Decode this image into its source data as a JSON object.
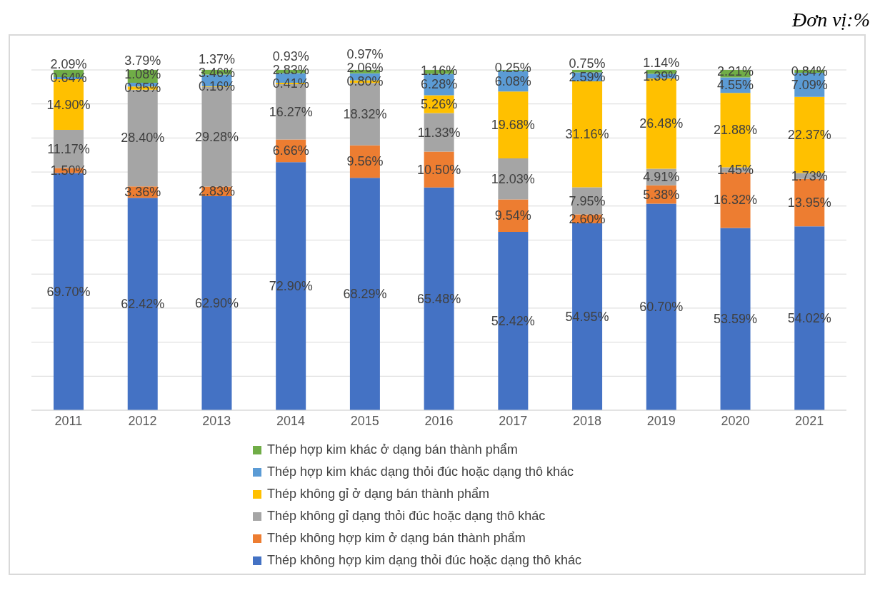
{
  "chart_data": {
    "type": "bar",
    "stacked": true,
    "annotations": [
      "Đơn vị:%"
    ],
    "categories": [
      "2011",
      "2012",
      "2013",
      "2014",
      "2015",
      "2016",
      "2017",
      "2018",
      "2019",
      "2020",
      "2021"
    ],
    "ylim": [
      0,
      100
    ],
    "yticks": [
      {
        "value": 0,
        "label": null
      },
      {
        "value": 10,
        "label": null
      },
      {
        "value": 20,
        "label": null
      },
      {
        "value": 30,
        "label": null
      },
      {
        "value": 40,
        "label": null
      },
      {
        "value": 50,
        "label": null
      },
      {
        "value": 60,
        "label": null
      },
      {
        "value": 70,
        "label": null
      },
      {
        "value": 80,
        "label": null
      },
      {
        "value": 90,
        "label": null
      },
      {
        "value": 100,
        "label": null
      }
    ],
    "tick_labels": "x",
    "grid": "y",
    "legend": "bottom",
    "series": [
      {
        "name": "Thép không hợp kim dạng thỏi đúc hoặc dạng thô khác",
        "color": "#4472c4",
        "values": [
          69.7,
          62.42,
          62.9,
          72.9,
          68.29,
          65.48,
          52.42,
          54.95,
          60.7,
          53.59,
          54.02
        ],
        "value_labels": [
          "69.70%",
          "62.42%",
          "62.90%",
          "72.90%",
          "68.29%",
          "65.48%",
          "52.42%",
          "54.95%",
          "60.70%",
          "53.59%",
          "54.02%"
        ]
      },
      {
        "name": "Thép không hợp kim ở dạng bán thành phẩm",
        "color": "#ed7d31",
        "values": [
          1.5,
          3.36,
          2.83,
          6.66,
          9.56,
          10.5,
          9.54,
          2.6,
          5.38,
          16.32,
          13.95
        ],
        "value_labels": [
          "1.50%",
          "3.36%",
          "2.83%",
          "6.66%",
          "9.56%",
          "10.50%",
          "9.54%",
          "2.60%",
          "5.38%",
          "16.32%",
          "13.95%"
        ]
      },
      {
        "name": "Thép không gỉ dạng thỏi đúc hoặc dạng thô khác",
        "color": "#a5a5a5",
        "values": [
          11.17,
          28.4,
          29.28,
          16.27,
          18.32,
          11.33,
          12.03,
          7.95,
          4.91,
          1.45,
          1.73
        ],
        "value_labels": [
          "11.17%",
          "28.40%",
          "29.28%",
          "16.27%",
          "18.32%",
          "11.33%",
          "12.03%",
          "7.95%",
          "4.91%",
          "1.45%",
          "1.73%"
        ]
      },
      {
        "name": "Thép không gỉ ở dạng bán thành phẩm",
        "color": "#ffc000",
        "values": [
          14.9,
          0.95,
          0.16,
          0.41,
          0.8,
          5.26,
          19.68,
          31.16,
          26.48,
          21.88,
          22.37
        ],
        "value_labels": [
          "14.90%",
          "0.95%",
          "0.16%",
          "0.41%",
          "0.80%",
          "5.26%",
          "19.68%",
          "31.16%",
          "26.48%",
          "21.88%",
          "22.37%"
        ]
      },
      {
        "name": "Thép hợp kim khác dạng thỏi đúc hoặc dạng thô khác",
        "color": "#5b9bd5",
        "values": [
          0.64,
          1.08,
          3.46,
          2.83,
          2.06,
          6.28,
          6.08,
          2.59,
          1.39,
          4.55,
          7.09
        ],
        "value_labels": [
          "0.64%",
          "1.08%",
          "3.46%",
          "2.83%",
          "2.06%",
          "6.28%",
          "6.08%",
          "2.59%",
          "1.39%",
          "4.55%",
          "7.09%"
        ]
      },
      {
        "name": "Thép hợp kim khác ở dạng bán thành phẩm",
        "color": "#70ad47",
        "values": [
          2.09,
          3.79,
          1.37,
          0.93,
          0.97,
          1.16,
          0.25,
          0.75,
          1.14,
          2.21,
          0.84
        ],
        "value_labels": [
          "2.09%",
          "3.79%",
          "1.37%",
          "0.93%",
          "0.97%",
          "1.16%",
          "0.25%",
          "0.75%",
          "1.14%",
          "2.21%",
          "0.84%"
        ]
      }
    ]
  }
}
